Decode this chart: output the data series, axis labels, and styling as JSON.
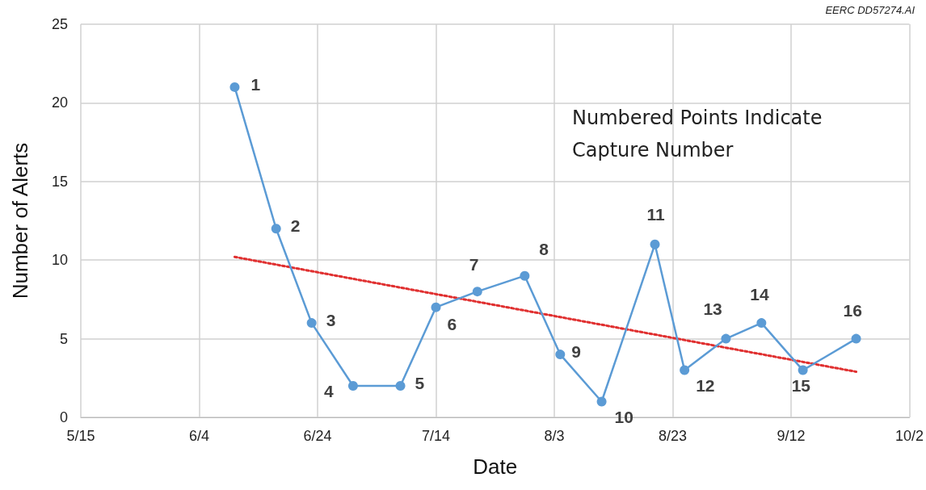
{
  "chart_data": {
    "type": "line",
    "xlabel": "Date",
    "ylabel": "Number of Alerts",
    "annotations": [
      "Numbered Points Indicate Capture Number",
      "EERC DD57274.AI",
      {
        "text": "1",
        "x": "--06-10",
        "y": 21
      },
      {
        "text": "2",
        "x": "--06-17",
        "y": 12
      },
      {
        "text": "3",
        "x": "--06-23",
        "y": 6
      },
      {
        "text": "4",
        "x": "--06-30",
        "y": 2
      },
      {
        "text": "5",
        "x": "--07-08",
        "y": 2
      },
      {
        "text": "6",
        "x": "--07-14",
        "y": 7
      },
      {
        "text": "7",
        "x": "--07-21",
        "y": 8
      },
      {
        "text": "8",
        "x": "--07-29",
        "y": 9
      },
      {
        "text": "9",
        "x": "--08-04",
        "y": 4
      },
      {
        "text": "10",
        "x": "--08-11",
        "y": 1
      },
      {
        "text": "11",
        "x": "--08-20",
        "y": 11
      },
      {
        "text": "12",
        "x": "--08-25",
        "y": 3
      },
      {
        "text": "13",
        "x": "--09-01",
        "y": 5
      },
      {
        "text": "14",
        "x": "--09-07",
        "y": 6
      },
      {
        "text": "15",
        "x": "--09-14",
        "y": 3
      },
      {
        "text": "16",
        "x": "--09-23",
        "y": 5
      }
    ],
    "xlim": [
      "--05-15",
      "--10-02"
    ],
    "xticks": [
      {
        "value": "--05-15",
        "label": "5/15"
      },
      {
        "value": "--06-04",
        "label": "6/4"
      },
      {
        "value": "--06-24",
        "label": "6/24"
      },
      {
        "value": "--07-14",
        "label": "7/14"
      },
      {
        "value": "--08-03",
        "label": "8/3"
      },
      {
        "value": "--08-23",
        "label": "8/23"
      },
      {
        "value": "--09-12",
        "label": "9/12"
      },
      {
        "value": "--10-02",
        "label": "10/2"
      }
    ],
    "ylim": [
      0,
      25
    ],
    "yticks": [
      0,
      5,
      10,
      15,
      20,
      25
    ],
    "grid": true,
    "series": [
      {
        "color": "#5b9bd5",
        "marker": "circle",
        "line_style": "solid",
        "x": [
          "--06-10",
          "--06-17",
          "--06-23",
          "--06-30",
          "--07-08",
          "--07-14",
          "--07-21",
          "--07-29",
          "--08-04",
          "--08-11",
          "--08-20",
          "--08-25",
          "--09-01",
          "--09-07",
          "--09-14",
          "--09-23"
        ],
        "values": [
          21,
          12,
          6,
          2,
          2,
          7,
          8,
          9,
          4,
          1,
          11,
          3,
          5,
          6,
          3,
          5
        ]
      },
      {
        "type": "line",
        "color": "#e03030",
        "marker": "none",
        "line_style": "dotted",
        "x": [
          "--06-10",
          "--09-23"
        ],
        "values": [
          10.2,
          2.9
        ]
      }
    ]
  }
}
